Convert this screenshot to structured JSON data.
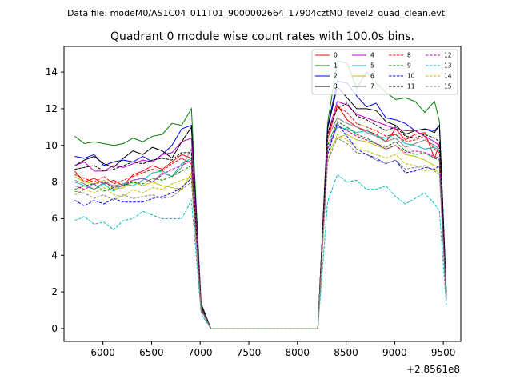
{
  "header": "Data file: modeM0/AS1C04_011T01_9000002664_17904cztM0_level2_quad_clean.evt",
  "chart_data": {
    "type": "line",
    "title": "Quadrant 0 module wise count rates with 100.0s bins.",
    "xlabel": "",
    "ylabel": "",
    "x_offset_label": "+2.8561e8",
    "xlim": [
      5600,
      9680
    ],
    "ylim": [
      -0.7,
      15.4
    ],
    "xticks": [
      6000,
      6500,
      7000,
      7500,
      8000,
      8500,
      9000,
      9500
    ],
    "yticks": [
      0,
      2,
      4,
      6,
      8,
      10,
      12,
      14
    ],
    "grid": false,
    "legend_position": "top-right",
    "x": [
      5710,
      5810,
      5910,
      6010,
      6110,
      6210,
      6310,
      6410,
      6510,
      6610,
      6710,
      6810,
      6910,
      7010,
      7110,
      7210,
      7310,
      7410,
      7510,
      7610,
      7710,
      7810,
      7910,
      8010,
      8110,
      8210,
      8310,
      8410,
      8510,
      8610,
      8710,
      8810,
      8910,
      9010,
      9110,
      9210,
      9310,
      9410,
      9460,
      9530
    ],
    "series": [
      {
        "name": "0",
        "color": "#ff0000",
        "dash": "solid",
        "values": [
          8.6,
          8.0,
          8.2,
          7.9,
          8.1,
          7.8,
          8.4,
          8.6,
          8.9,
          8.7,
          9.1,
          9.5,
          9.3,
          1.1,
          0.0,
          0.0,
          0.0,
          0.0,
          0.0,
          0.0,
          0.0,
          0.0,
          0.0,
          0.0,
          0.0,
          0.0,
          10.3,
          12.2,
          11.4,
          11.0,
          10.8,
          10.6,
          10.2,
          10.9,
          10.3,
          10.6,
          10.7,
          9.3,
          10.1,
          1.8
        ]
      },
      {
        "name": "1",
        "color": "#008000",
        "dash": "solid",
        "values": [
          10.5,
          10.1,
          10.2,
          10.1,
          10.0,
          10.1,
          10.4,
          10.2,
          10.5,
          10.6,
          11.2,
          11.1,
          12.0,
          1.4,
          0.0,
          0.0,
          0.0,
          0.0,
          0.0,
          0.0,
          0.0,
          0.0,
          0.0,
          0.0,
          0.0,
          0.0,
          11.2,
          14.6,
          14.5,
          13.1,
          14.0,
          13.4,
          12.9,
          12.5,
          12.6,
          12.4,
          11.8,
          12.4,
          11.3,
          2.2
        ]
      },
      {
        "name": "2",
        "color": "#0000ff",
        "dash": "solid",
        "values": [
          9.4,
          9.3,
          9.5,
          8.9,
          9.1,
          9.2,
          9.1,
          9.4,
          9.1,
          9.5,
          10.0,
          10.9,
          11.1,
          1.3,
          0.0,
          0.0,
          0.0,
          0.0,
          0.0,
          0.0,
          0.0,
          0.0,
          0.0,
          0.0,
          0.0,
          0.0,
          11.0,
          13.5,
          13.4,
          12.7,
          12.1,
          12.3,
          11.5,
          11.4,
          11.2,
          10.8,
          10.9,
          10.8,
          11.1,
          2.0
        ]
      },
      {
        "name": "3",
        "color": "#000000",
        "dash": "solid",
        "values": [
          8.9,
          9.2,
          9.4,
          9.0,
          8.8,
          9.3,
          9.7,
          9.5,
          9.9,
          9.7,
          9.3,
          10.2,
          11.0,
          1.3,
          0.0,
          0.0,
          0.0,
          0.0,
          0.0,
          0.0,
          0.0,
          0.0,
          0.0,
          0.0,
          0.0,
          0.0,
          10.9,
          13.2,
          12.6,
          12.0,
          12.0,
          11.9,
          11.3,
          11.1,
          10.6,
          10.8,
          10.9,
          10.7,
          11.1,
          2.0
        ]
      },
      {
        "name": "4",
        "color": "#c000c0",
        "dash": "solid",
        "values": [
          8.9,
          9.1,
          8.6,
          8.6,
          8.9,
          8.8,
          9.0,
          9.2,
          9.1,
          9.5,
          9.6,
          10.2,
          10.4,
          1.2,
          0.0,
          0.0,
          0.0,
          0.0,
          0.0,
          0.0,
          0.0,
          0.0,
          0.0,
          0.0,
          0.0,
          0.0,
          10.6,
          12.4,
          12.2,
          11.7,
          11.5,
          11.3,
          11.1,
          10.9,
          10.8,
          10.8,
          10.5,
          10.2,
          10.0,
          1.8
        ]
      },
      {
        "name": "5",
        "color": "#00bfbf",
        "dash": "solid",
        "values": [
          8.0,
          7.8,
          7.6,
          7.9,
          7.5,
          7.9,
          7.8,
          8.1,
          8.5,
          8.6,
          8.3,
          9.0,
          9.3,
          1.1,
          0.0,
          0.0,
          0.0,
          0.0,
          0.0,
          0.0,
          0.0,
          0.0,
          0.0,
          0.0,
          0.0,
          0.0,
          9.8,
          11.0,
          10.9,
          10.7,
          10.8,
          10.5,
          10.4,
          10.6,
          10.1,
          10.0,
          9.8,
          9.9,
          9.7,
          1.8
        ]
      },
      {
        "name": "6",
        "color": "#bfbf00",
        "dash": "solid",
        "values": [
          8.3,
          8.0,
          7.9,
          8.1,
          7.6,
          7.7,
          8.0,
          7.8,
          8.0,
          7.8,
          7.7,
          7.6,
          8.5,
          1.1,
          0.0,
          0.0,
          0.0,
          0.0,
          0.0,
          0.0,
          0.0,
          0.0,
          0.0,
          0.0,
          0.0,
          0.0,
          9.6,
          10.4,
          10.6,
          10.3,
          10.2,
          10.0,
          9.8,
          10.0,
          9.5,
          9.4,
          9.2,
          8.9,
          8.8,
          1.6
        ]
      },
      {
        "name": "7",
        "color": "#7f7f7f",
        "dash": "solid",
        "values": [
          8.1,
          7.9,
          7.6,
          8.0,
          7.8,
          7.9,
          8.1,
          8.2,
          8.0,
          8.5,
          8.3,
          8.8,
          9.8,
          1.2,
          0.0,
          0.0,
          0.0,
          0.0,
          0.0,
          0.0,
          0.0,
          0.0,
          0.0,
          0.0,
          0.0,
          0.0,
          10.4,
          11.5,
          11.2,
          11.0,
          10.7,
          10.5,
          10.2,
          10.4,
          9.9,
          10.1,
          10.3,
          10.0,
          9.8,
          1.9
        ]
      },
      {
        "name": "8",
        "color": "#ff0000",
        "dash": "dashed",
        "values": [
          8.4,
          8.2,
          8.0,
          8.3,
          7.9,
          8.1,
          8.3,
          8.5,
          8.7,
          8.6,
          9.0,
          9.3,
          9.0,
          1.1,
          0.0,
          0.0,
          0.0,
          0.0,
          0.0,
          0.0,
          0.0,
          0.0,
          0.0,
          0.0,
          0.0,
          0.0,
          10.5,
          12.1,
          11.8,
          11.2,
          11.0,
          10.8,
          10.5,
          10.6,
          10.2,
          10.3,
          10.5,
          9.8,
          9.6,
          1.8
        ]
      },
      {
        "name": "9",
        "color": "#008000",
        "dash": "dashed",
        "values": [
          7.6,
          7.8,
          7.9,
          7.5,
          7.7,
          7.8,
          8.0,
          7.9,
          8.2,
          8.1,
          8.3,
          8.6,
          8.9,
          1.1,
          0.0,
          0.0,
          0.0,
          0.0,
          0.0,
          0.0,
          0.0,
          0.0,
          0.0,
          0.0,
          0.0,
          0.0,
          10.0,
          11.3,
          11.0,
          10.6,
          10.4,
          10.1,
          9.9,
          10.2,
          9.7,
          9.5,
          9.6,
          9.3,
          9.2,
          1.7
        ]
      },
      {
        "name": "10",
        "color": "#0000ff",
        "dash": "dashed",
        "values": [
          7.0,
          6.7,
          7.0,
          6.8,
          7.1,
          6.9,
          6.9,
          6.9,
          7.1,
          7.2,
          7.4,
          7.7,
          8.2,
          1.0,
          0.0,
          0.0,
          0.0,
          0.0,
          0.0,
          0.0,
          0.0,
          0.0,
          0.0,
          0.0,
          0.0,
          0.0,
          9.5,
          11.2,
          10.5,
          9.8,
          9.5,
          9.3,
          9.0,
          9.2,
          8.5,
          8.6,
          8.8,
          8.7,
          8.9,
          1.6
        ]
      },
      {
        "name": "11",
        "color": "#000000",
        "dash": "dashed",
        "values": [
          8.7,
          8.8,
          8.9,
          8.6,
          8.7,
          8.9,
          9.1,
          9.0,
          9.2,
          9.3,
          9.2,
          9.6,
          9.6,
          1.2,
          0.0,
          0.0,
          0.0,
          0.0,
          0.0,
          0.0,
          0.0,
          0.0,
          0.0,
          0.0,
          0.0,
          0.0,
          10.7,
          12.0,
          12.3,
          11.6,
          11.4,
          11.1,
          10.8,
          11.0,
          10.5,
          10.4,
          10.6,
          10.4,
          10.2,
          1.9
        ]
      },
      {
        "name": "12",
        "color": "#c000c0",
        "dash": "dashed",
        "values": [
          7.8,
          7.6,
          7.9,
          8.0,
          7.7,
          7.8,
          8.1,
          8.2,
          8.0,
          8.4,
          8.7,
          8.9,
          9.2,
          1.1,
          0.0,
          0.0,
          0.0,
          0.0,
          0.0,
          0.0,
          0.0,
          0.0,
          0.0,
          0.0,
          0.0,
          0.0,
          9.8,
          11.1,
          10.8,
          10.5,
          10.3,
          10.1,
          9.8,
          10.0,
          9.6,
          9.7,
          9.6,
          9.4,
          9.3,
          1.7
        ]
      },
      {
        "name": "13",
        "color": "#00bfbf",
        "dash": "dashed",
        "values": [
          5.9,
          6.1,
          5.7,
          5.8,
          5.4,
          5.9,
          6.0,
          6.4,
          6.2,
          6.0,
          6.0,
          6.0,
          7.0,
          0.8,
          0.0,
          0.0,
          0.0,
          0.0,
          0.0,
          0.0,
          0.0,
          0.0,
          0.0,
          0.0,
          0.0,
          0.0,
          6.9,
          8.4,
          8.0,
          8.1,
          7.6,
          7.6,
          7.8,
          7.2,
          6.8,
          7.1,
          7.4,
          6.8,
          6.4,
          1.3
        ]
      },
      {
        "name": "14",
        "color": "#bfbf00",
        "dash": "dashed",
        "values": [
          7.3,
          7.6,
          7.4,
          7.7,
          7.3,
          7.2,
          7.6,
          7.4,
          7.7,
          7.6,
          7.9,
          8.1,
          8.3,
          1.0,
          0.0,
          0.0,
          0.0,
          0.0,
          0.0,
          0.0,
          0.0,
          0.0,
          0.0,
          0.0,
          0.0,
          0.0,
          9.2,
          10.6,
          10.3,
          9.8,
          9.7,
          9.5,
          9.3,
          9.5,
          9.0,
          8.9,
          8.6,
          8.7,
          8.5,
          1.5
        ]
      },
      {
        "name": "15",
        "color": "#7f7f7f",
        "dash": "dashed",
        "values": [
          7.5,
          7.4,
          7.1,
          7.3,
          7.0,
          7.3,
          7.1,
          7.2,
          7.3,
          7.1,
          7.2,
          7.6,
          8.0,
          1.0,
          0.0,
          0.0,
          0.0,
          0.0,
          0.0,
          0.0,
          0.0,
          0.0,
          0.0,
          0.0,
          0.0,
          0.0,
          9.1,
          10.4,
          10.1,
          9.6,
          9.5,
          9.2,
          9.0,
          9.2,
          8.7,
          8.8,
          8.9,
          8.6,
          8.4,
          1.5
        ]
      }
    ]
  }
}
